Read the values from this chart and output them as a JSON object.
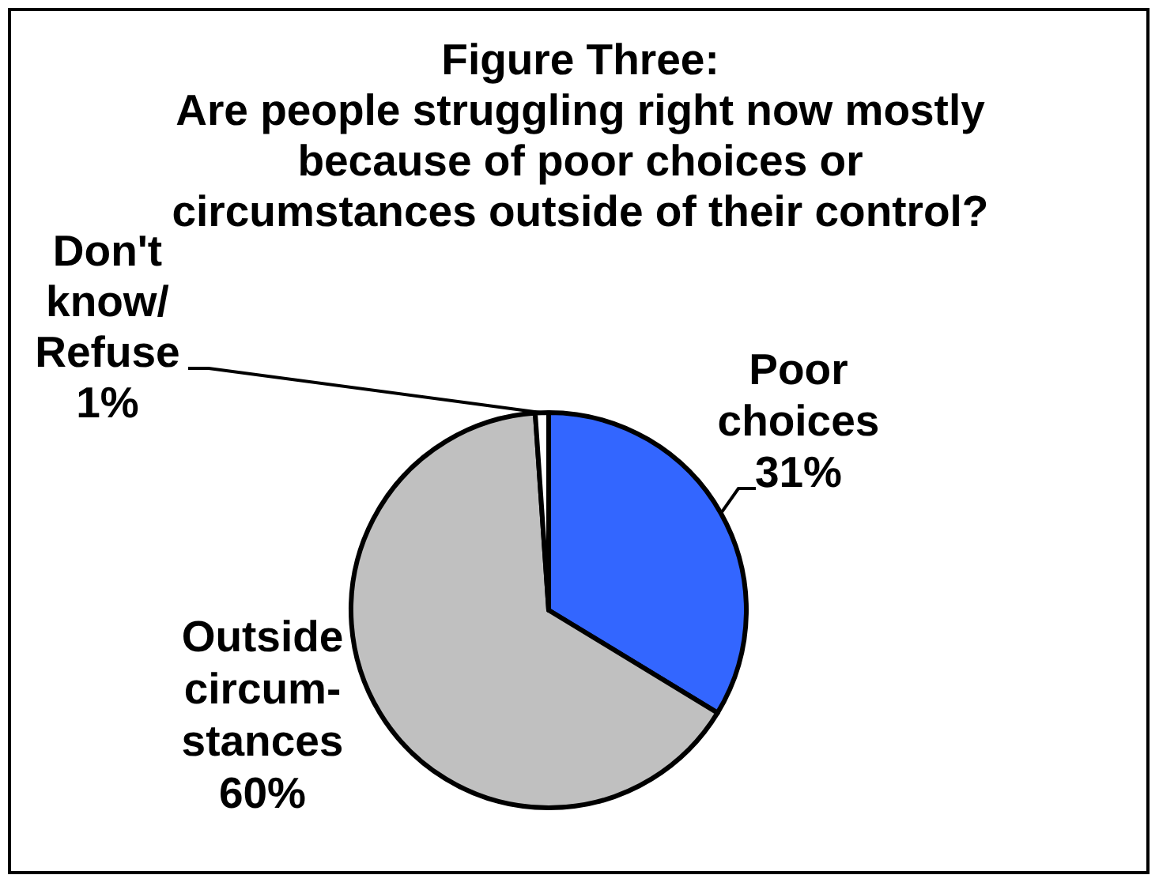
{
  "chart_data": {
    "type": "pie",
    "title": "Figure Three:\nAre people struggling right now mostly\nbecause of poor choices or\ncircumstances outside of their control?",
    "categories": [
      "Poor\nchoices",
      "Outside\ncircum-\nstances",
      "Don't\nknow/\nRefuse"
    ],
    "values": [
      31,
      60,
      1
    ],
    "colors": [
      "#3366ff",
      "#c0c0c0",
      "#ffffff"
    ],
    "value_labels": [
      "31%",
      "60%",
      "1%"
    ]
  }
}
